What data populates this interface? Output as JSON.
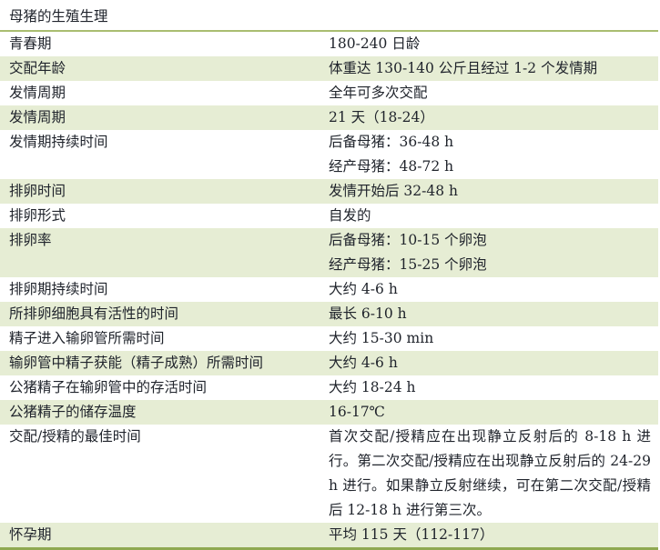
{
  "table": {
    "title": "母猪的生殖生理",
    "colors": {
      "shaded_row_bg": "#e6edd4",
      "title_rule": "#a9bd70",
      "bottom_rule": "#8fa951",
      "text": "#20242c"
    },
    "rows": [
      {
        "label": "青春期",
        "values": [
          "180-240 日龄"
        ],
        "shaded": false
      },
      {
        "label": "交配年龄",
        "values": [
          "体重达 130-140 公斤且经过 1-2 个发情期"
        ],
        "shaded": true
      },
      {
        "label": "发情周期",
        "values": [
          "全年可多次交配"
        ],
        "shaded": false
      },
      {
        "label": "发情周期",
        "values": [
          "21 天（18-24）"
        ],
        "shaded": true
      },
      {
        "label": "发情期持续时间",
        "values": [
          "后备母猪：36-48 h",
          "经产母猪：48-72 h"
        ],
        "shaded": false
      },
      {
        "label": "排卵时间",
        "values": [
          "发情开始后 32-48 h"
        ],
        "shaded": true
      },
      {
        "label": "排卵形式",
        "values": [
          "自发的"
        ],
        "shaded": false
      },
      {
        "label": "排卵率",
        "values": [
          "后备母猪：10-15 个卵泡",
          "经产母猪：15-25 个卵泡"
        ],
        "shaded": true
      },
      {
        "label": "排卵期持续时间",
        "values": [
          "大约 4-6 h"
        ],
        "shaded": false
      },
      {
        "label": "所排卵细胞具有活性的时间",
        "values": [
          "最长 6-10 h"
        ],
        "shaded": true
      },
      {
        "label": "精子进入输卵管所需时间",
        "values": [
          "大约 15-30 min"
        ],
        "shaded": false
      },
      {
        "label": "输卵管中精子获能（精子成熟）所需时间",
        "values": [
          "大约 4-6 h"
        ],
        "shaded": true
      },
      {
        "label": "公猪精子在输卵管中的存活时间",
        "values": [
          "大约 18-24 h"
        ],
        "shaded": false
      },
      {
        "label": "公猪精子的储存温度",
        "values": [
          "16-17℃"
        ],
        "shaded": true
      },
      {
        "label": "交配/授精的最佳时间",
        "values": [
          "首次交配/授精应在出现静立反射后的 8-18 h 进行。第二次交配/授精应在出现静立反射后的 24-29 h 进行。如果静立反射继续，可在第二次交配/授精后 12-18 h 进行第三次。"
        ],
        "shaded": false
      },
      {
        "label": "怀孕期",
        "values": [
          "平均 115 天（112-117）"
        ],
        "shaded": true
      }
    ]
  }
}
